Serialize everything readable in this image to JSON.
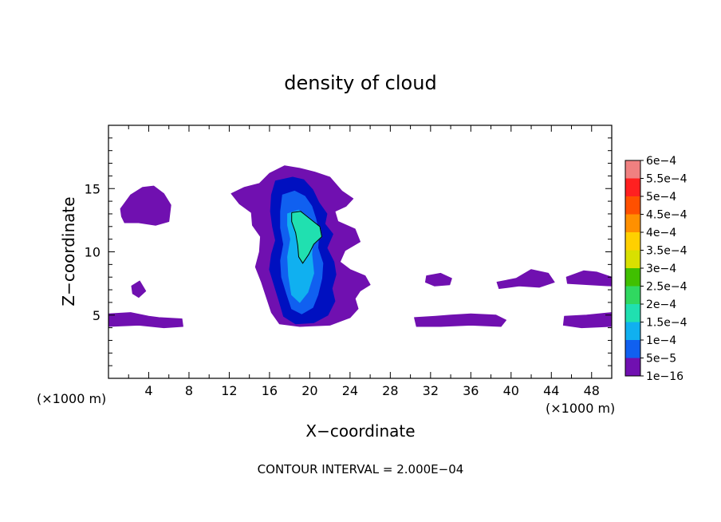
{
  "chart_data": {
    "type": "heatmap",
    "title": "density of cloud",
    "xlabel": "X−coordinate",
    "ylabel": "Z−coordinate",
    "x_unit_left": "(×1000 m)",
    "x_unit_right": "(×1000 m)",
    "xlim": [
      0,
      50
    ],
    "ylim": [
      0,
      20
    ],
    "x_ticks": [
      "4",
      "8",
      "12",
      "16",
      "20",
      "24",
      "28",
      "32",
      "36",
      "40",
      "44",
      "48"
    ],
    "x_tick_values": [
      4,
      8,
      12,
      16,
      20,
      24,
      28,
      32,
      36,
      40,
      44,
      48
    ],
    "y_ticks": [
      "5",
      "10",
      "15"
    ],
    "y_tick_values": [
      5,
      10,
      15
    ],
    "footer": "CONTOUR INTERVAL = 2.000E−04",
    "colorbar": {
      "labels": [
        "6e−4",
        "5.5e−4",
        "5e−4",
        "4.5e−4",
        "4e−4",
        "3.5e−4",
        "3e−4",
        "2.5e−4",
        "2e−4",
        "1.5e−4",
        "1e−4",
        "5e−5",
        "1e−16"
      ],
      "colors": [
        "#f08080",
        "#ff2020",
        "#ff5000",
        "#ff9000",
        "#ffd000",
        "#d8e000",
        "#40c000",
        "#30d860",
        "#20e0b0",
        "#10b0f0",
        "#1060f0",
        "#0010c0",
        "#7010b0"
      ]
    },
    "cloud_regions": [
      {
        "name": "main-cloud-envelope",
        "level": "1e−16",
        "points": [
          [
            16,
            16.2
          ],
          [
            17.5,
            16.8
          ],
          [
            19,
            16.6
          ],
          [
            20.5,
            16.3
          ],
          [
            22,
            15.9
          ],
          [
            23.2,
            14.8
          ],
          [
            24.3,
            14.2
          ],
          [
            23.6,
            13.6
          ],
          [
            22.5,
            13.2
          ],
          [
            22.8,
            12.4
          ],
          [
            24.5,
            11.8
          ],
          [
            25,
            10.8
          ],
          [
            23.5,
            10.1
          ],
          [
            23,
            9.2
          ],
          [
            24,
            8.6
          ],
          [
            25.5,
            8.1
          ],
          [
            26,
            7.4
          ],
          [
            25,
            6.9
          ],
          [
            24.5,
            6.3
          ],
          [
            24.8,
            5.5
          ],
          [
            24,
            4.8
          ],
          [
            22,
            4.2
          ],
          [
            19,
            4.1
          ],
          [
            17,
            4.3
          ],
          [
            16.2,
            5.2
          ],
          [
            15.7,
            6.4
          ],
          [
            15.2,
            7.6
          ],
          [
            14.6,
            8.8
          ],
          [
            15,
            10
          ],
          [
            15.1,
            11.2
          ],
          [
            14.3,
            12.1
          ],
          [
            14.2,
            13.1
          ],
          [
            13,
            13.8
          ],
          [
            12.2,
            14.6
          ],
          [
            13.5,
            15.1
          ],
          [
            15,
            15.4
          ]
        ]
      },
      {
        "name": "main-cloud-low",
        "level": "5e−5",
        "points": [
          [
            16.6,
            15.6
          ],
          [
            18.3,
            15.9
          ],
          [
            19.4,
            15.7
          ],
          [
            20.3,
            14.9
          ],
          [
            20.9,
            13.9
          ],
          [
            21.7,
            13
          ],
          [
            21.5,
            12.2
          ],
          [
            22.3,
            11.4
          ],
          [
            21.7,
            10.3
          ],
          [
            22.4,
            9.2
          ],
          [
            22.6,
            8.2
          ],
          [
            22.2,
            7.1
          ],
          [
            22.5,
            6.1
          ],
          [
            21.8,
            5
          ],
          [
            20.4,
            4.4
          ],
          [
            18.6,
            4.3
          ],
          [
            17.4,
            4.9
          ],
          [
            17,
            6
          ],
          [
            16.5,
            7.3
          ],
          [
            16,
            8.6
          ],
          [
            16.2,
            9.8
          ],
          [
            16.6,
            10.9
          ],
          [
            16.3,
            12
          ],
          [
            16.1,
            13.2
          ],
          [
            16.2,
            14.5
          ]
        ]
      },
      {
        "name": "main-cloud-mid",
        "level": "1e−4",
        "points": [
          [
            17.3,
            14.5
          ],
          [
            18.5,
            14.8
          ],
          [
            19.5,
            14.4
          ],
          [
            20.2,
            13.6
          ],
          [
            20.6,
            12.6
          ],
          [
            20.9,
            11.5
          ],
          [
            20.8,
            10.3
          ],
          [
            21.3,
            9.1
          ],
          [
            21.2,
            7.9
          ],
          [
            20.8,
            6.6
          ],
          [
            20.3,
            5.6
          ],
          [
            19.2,
            5.1
          ],
          [
            18.2,
            5.5
          ],
          [
            17.7,
            6.7
          ],
          [
            17.2,
            8
          ],
          [
            17.1,
            9.3
          ],
          [
            17.4,
            10.6
          ],
          [
            17.1,
            11.9
          ],
          [
            17.1,
            13.2
          ]
        ]
      },
      {
        "name": "main-cloud-core",
        "level": "1.5e−4",
        "points": [
          [
            17.8,
            13
          ],
          [
            18.9,
            13.3
          ],
          [
            19.8,
            12.6
          ],
          [
            20.3,
            11.3
          ],
          [
            20.2,
            9.8
          ],
          [
            20.4,
            8.3
          ],
          [
            19.8,
            6.8
          ],
          [
            19,
            6
          ],
          [
            18.2,
            6.6
          ],
          [
            17.9,
            8.1
          ],
          [
            17.8,
            9.6
          ],
          [
            18.1,
            11
          ],
          [
            17.8,
            12.1
          ]
        ]
      },
      {
        "name": "main-cloud-peak",
        "level": "2e−4",
        "points": [
          [
            18.2,
            13.1
          ],
          [
            19.1,
            13.2
          ],
          [
            20.2,
            12.5
          ],
          [
            21,
            12
          ],
          [
            21.2,
            11.2
          ],
          [
            20.4,
            10.6
          ],
          [
            19.9,
            9.8
          ],
          [
            19.3,
            9.1
          ],
          [
            18.9,
            9.6
          ],
          [
            18.8,
            10.5
          ],
          [
            18.6,
            11.5
          ],
          [
            18.2,
            12.4
          ]
        ]
      },
      {
        "name": "left-upper-patch",
        "level": "1e−16",
        "points": [
          [
            1.2,
            13.4
          ],
          [
            2.2,
            14.5
          ],
          [
            3.4,
            15.1
          ],
          [
            4.5,
            15.2
          ],
          [
            5.5,
            14.6
          ],
          [
            6.2,
            13.7
          ],
          [
            6,
            12.4
          ],
          [
            4.7,
            12.1
          ],
          [
            3,
            12.3
          ],
          [
            1.6,
            12.3
          ],
          [
            1.3,
            12.8
          ]
        ]
      },
      {
        "name": "left-lower-band",
        "level": "1e−16",
        "points": [
          [
            0,
            5.1
          ],
          [
            2.2,
            5.2
          ],
          [
            4,
            4.9
          ],
          [
            5,
            4.8
          ],
          [
            7.3,
            4.7
          ],
          [
            7.4,
            4.1
          ],
          [
            5.5,
            4
          ],
          [
            3,
            4.2
          ],
          [
            0,
            4.1
          ]
        ]
      },
      {
        "name": "right-lower-band-a",
        "level": "1e−16",
        "points": [
          [
            30.4,
            4.8
          ],
          [
            32.5,
            4.9
          ],
          [
            34,
            5
          ],
          [
            36,
            5.1
          ],
          [
            38.5,
            5
          ],
          [
            39.5,
            4.6
          ],
          [
            39,
            4.1
          ],
          [
            36,
            4.2
          ],
          [
            33,
            4.1
          ],
          [
            30.6,
            4.1
          ]
        ]
      },
      {
        "name": "right-lower-band-b",
        "level": "1e−16",
        "points": [
          [
            45.3,
            4.9
          ],
          [
            47.5,
            5
          ],
          [
            50,
            5.2
          ],
          [
            50,
            4.1
          ],
          [
            47,
            4
          ],
          [
            45.2,
            4.2
          ]
        ]
      },
      {
        "name": "right-upper-streak-a",
        "level": "1e−16",
        "points": [
          [
            31.6,
            8.1
          ],
          [
            33,
            8.3
          ],
          [
            34.1,
            7.9
          ],
          [
            33.9,
            7.4
          ],
          [
            32.4,
            7.3
          ],
          [
            31.5,
            7.6
          ]
        ]
      },
      {
        "name": "right-upper-streak-b",
        "level": "1e−16",
        "points": [
          [
            38.6,
            7.6
          ],
          [
            40.5,
            7.9
          ],
          [
            42,
            8.6
          ],
          [
            43.7,
            8.3
          ],
          [
            44.3,
            7.6
          ],
          [
            42.8,
            7.2
          ],
          [
            40.8,
            7.3
          ],
          [
            38.8,
            7.1
          ]
        ]
      },
      {
        "name": "right-upper-streak-c",
        "level": "1e−16",
        "points": [
          [
            45.5,
            8
          ],
          [
            47.2,
            8.5
          ],
          [
            48.5,
            8.4
          ],
          [
            50,
            8
          ],
          [
            50,
            7.3
          ],
          [
            47.8,
            7.4
          ],
          [
            45.6,
            7.5
          ]
        ]
      },
      {
        "name": "left-mid-patch",
        "level": "1e−16",
        "points": [
          [
            2.3,
            7.3
          ],
          [
            3.1,
            7.7
          ],
          [
            3.7,
            6.9
          ],
          [
            3,
            6.4
          ],
          [
            2.4,
            6.7
          ]
        ]
      }
    ],
    "contour_level": "2e−4",
    "contour_lines": [
      [
        [
          18.2,
          13.1
        ],
        [
          19.1,
          13.2
        ],
        [
          20.2,
          12.5
        ],
        [
          21,
          12
        ],
        [
          21.2,
          11.2
        ],
        [
          20.4,
          10.6
        ],
        [
          19.9,
          9.8
        ],
        [
          19.3,
          9.1
        ],
        [
          18.9,
          9.6
        ],
        [
          18.8,
          10.5
        ],
        [
          18.6,
          11.5
        ],
        [
          18.2,
          12.4
        ],
        [
          18.2,
          13.1
        ]
      ]
    ]
  }
}
